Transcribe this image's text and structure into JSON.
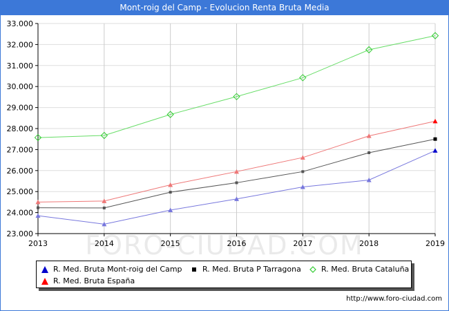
{
  "header": {
    "title": "Mont-roig del Camp - Evolucion Renta Bruta Media"
  },
  "watermark": "FORO-CIUDAD.COM",
  "footer": {
    "url": "http://www.foro-ciudad.com"
  },
  "chart_data": {
    "type": "line",
    "title": "Mont-roig del Camp - Evolucion Renta Bruta Media",
    "xlabel": "",
    "ylabel": "",
    "categories": [
      "2013",
      "2014",
      "2015",
      "2016",
      "2017",
      "2018",
      "2019"
    ],
    "ylim": [
      23000,
      33000
    ],
    "ytick_labels": [
      "23.000",
      "24.000",
      "25.000",
      "26.000",
      "27.000",
      "28.000",
      "29.000",
      "30.000",
      "31.000",
      "32.000",
      "33.000"
    ],
    "ytick_values": [
      23000,
      24000,
      25000,
      26000,
      27000,
      28000,
      29000,
      30000,
      31000,
      32000,
      33000
    ],
    "grid": true,
    "legend_position": "bottom",
    "series": [
      {
        "name": "R. Med. Bruta Mont-roig del Camp",
        "color": "#0000cc",
        "line_color": "#7777dd",
        "marker": "triangle",
        "values": [
          23850,
          23450,
          24120,
          24650,
          25220,
          25550,
          26950
        ]
      },
      {
        "name": "R. Med. Bruta P Tarragona",
        "color": "#000000",
        "line_color": "#555555",
        "marker": "square",
        "values": [
          24230,
          24220,
          24970,
          25420,
          25950,
          26850,
          27500
        ]
      },
      {
        "name": "R. Med. Bruta Cataluña",
        "color": "#33cc33",
        "line_color": "#66dd66",
        "marker": "diamond",
        "values": [
          27570,
          27670,
          28670,
          29520,
          30420,
          31750,
          32420
        ]
      },
      {
        "name": "R. Med. Bruta España",
        "color": "#ff0000",
        "line_color": "#ee7777",
        "marker": "triangle",
        "values": [
          24500,
          24550,
          25320,
          25950,
          26620,
          27650,
          28350
        ]
      }
    ]
  }
}
